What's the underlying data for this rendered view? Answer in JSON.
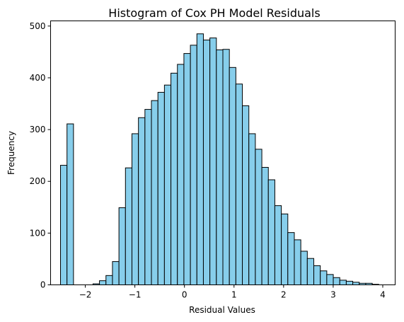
{
  "chart_data": {
    "type": "bar",
    "title": "Histogram of Cox PH Model Residuals",
    "xlabel": "Residual Values",
    "ylabel": "Frequency",
    "xlim": [
      -2.7,
      4.25
    ],
    "ylim": [
      0,
      510
    ],
    "x_ticks": [
      -2,
      -1,
      0,
      1,
      2,
      3,
      4
    ],
    "x_tick_labels": [
      "−2",
      "−1",
      "0",
      "1",
      "2",
      "3",
      "4"
    ],
    "y_ticks": [
      0,
      100,
      200,
      300,
      400,
      500
    ],
    "y_tick_labels": [
      "0",
      "100",
      "200",
      "300",
      "400",
      "500"
    ],
    "grid": false,
    "bar_color": "#87CEEB",
    "edge_color": "#000000",
    "bin_start": -2.5,
    "bin_width": 0.131,
    "counts": [
      231,
      311,
      0,
      0,
      0,
      2,
      8,
      18,
      45,
      149,
      226,
      292,
      323,
      339,
      356,
      372,
      386,
      409,
      426,
      447,
      463,
      485,
      473,
      477,
      454,
      455,
      420,
      388,
      346,
      292,
      262,
      227,
      203,
      153,
      137,
      101,
      87,
      65,
      51,
      37,
      27,
      20,
      14,
      9,
      7,
      5,
      3,
      3,
      1
    ]
  }
}
